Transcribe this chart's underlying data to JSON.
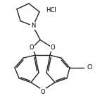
{
  "bg_color": "#ffffff",
  "line_color": "#222222",
  "line_width": 1.0,
  "text_color": "#000000",
  "hcl_label": "HCl",
  "n_label": "N",
  "cl_label": "Cl",
  "figsize": [
    1.42,
    1.36
  ],
  "dpi": 100
}
